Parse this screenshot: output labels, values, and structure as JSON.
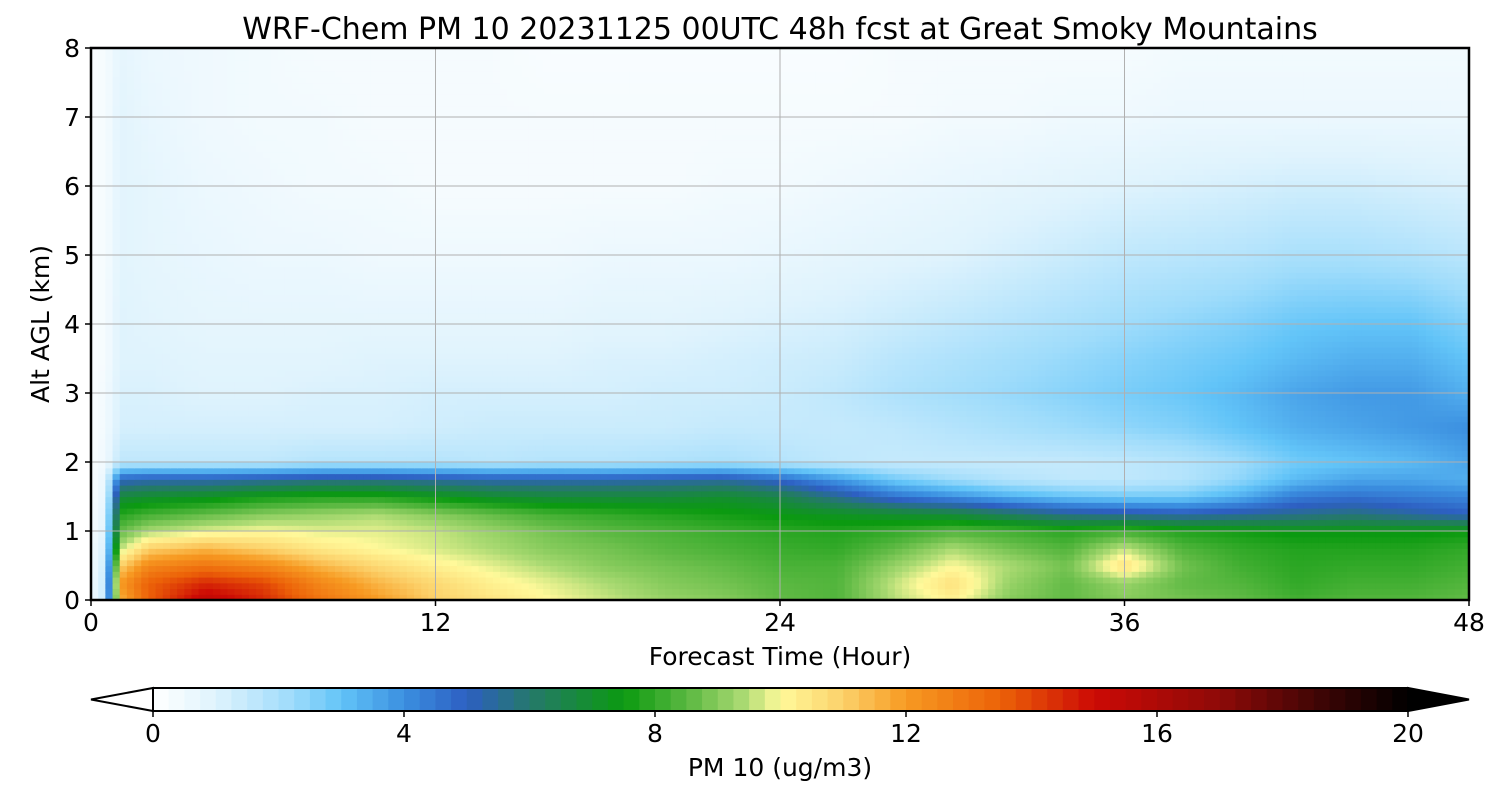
{
  "chart_data": {
    "type": "heatmap",
    "title": "WRF-Chem PM 10  20231125 00UTC 48h fcst at Great Smoky Mountains",
    "xlabel": "Forecast Time (Hour)",
    "ylabel": "Alt AGL (km)",
    "xlim": [
      0,
      48
    ],
    "ylim": [
      0,
      8
    ],
    "xticks": [
      0,
      12,
      24,
      36,
      48
    ],
    "yticks": [
      0,
      1,
      2,
      3,
      4,
      5,
      6,
      7,
      8
    ],
    "grid": true,
    "colorbar": {
      "label": "PM 10  (ug/m3)",
      "range": [
        0,
        20
      ],
      "ticks": [
        0,
        4,
        8,
        12,
        16,
        20
      ],
      "extend": "both",
      "orientation": "horizontal"
    },
    "colormap_stops": [
      {
        "v": 0,
        "c": "#ffffff"
      },
      {
        "v": 1,
        "c": "#dff3fd"
      },
      {
        "v": 2.2,
        "c": "#9fdcfb"
      },
      {
        "v": 3,
        "c": "#62c4f8"
      },
      {
        "v": 4,
        "c": "#3b8fe0"
      },
      {
        "v": 5,
        "c": "#2d5fc2"
      },
      {
        "v": 6,
        "c": "#25786c"
      },
      {
        "v": 7.5,
        "c": "#0b9a10"
      },
      {
        "v": 8.6,
        "c": "#62bb46"
      },
      {
        "v": 9.4,
        "c": "#aada72"
      },
      {
        "v": 10,
        "c": "#fff99a"
      },
      {
        "v": 11,
        "c": "#fcd16a"
      },
      {
        "v": 12,
        "c": "#f79a22"
      },
      {
        "v": 13.5,
        "c": "#ec6208"
      },
      {
        "v": 15,
        "c": "#cc0a05"
      },
      {
        "v": 17,
        "c": "#8e0a08"
      },
      {
        "v": 18.6,
        "c": "#3e0505"
      },
      {
        "v": 20,
        "c": "#000000"
      }
    ],
    "field_hours": [
      0,
      0.5,
      1,
      2,
      4,
      6,
      8,
      10,
      12,
      14,
      16,
      18,
      20,
      22,
      24,
      26,
      28,
      30,
      32,
      34,
      36,
      38,
      40,
      42,
      44,
      46,
      48
    ],
    "field_levels_km": [
      0,
      0.25,
      0.5,
      0.75,
      1.0,
      1.25,
      1.5,
      1.75,
      2.0,
      2.5,
      3.0,
      3.5,
      4.0,
      5.0,
      6.0,
      7.0,
      8.0
    ],
    "field_values": [
      [
        0.5,
        1.5,
        11.5,
        13.5,
        15.5,
        14.5,
        13.0,
        12.0,
        11.0,
        10.5,
        10.0,
        9.6,
        9.2,
        9.0,
        8.6,
        8.4,
        9.5,
        10.2,
        9.0,
        8.6,
        9.0,
        8.8,
        8.6,
        8.2,
        8.4,
        8.4,
        8.6
      ],
      [
        0.5,
        1.5,
        12.0,
        13.5,
        14.5,
        14.0,
        12.5,
        11.5,
        10.8,
        10.2,
        9.8,
        9.4,
        9.0,
        8.8,
        8.5,
        8.4,
        9.6,
        10.6,
        9.2,
        8.6,
        9.2,
        8.6,
        8.4,
        8.0,
        8.2,
        8.2,
        8.4
      ],
      [
        0.4,
        1.4,
        11.0,
        12.5,
        13.0,
        12.5,
        11.5,
        10.8,
        10.2,
        9.8,
        9.4,
        9.0,
        8.8,
        8.6,
        8.3,
        8.3,
        9.2,
        10.0,
        9.4,
        8.8,
        10.6,
        8.8,
        8.2,
        7.9,
        8.0,
        8.0,
        8.2
      ],
      [
        0.4,
        1.2,
        9.5,
        11.0,
        11.5,
        11.0,
        10.4,
        10.0,
        9.7,
        9.4,
        9.0,
        8.8,
        8.5,
        8.3,
        8.1,
        8.0,
        8.6,
        9.4,
        8.8,
        8.4,
        9.6,
        8.4,
        8.0,
        7.8,
        7.8,
        7.8,
        8.0
      ],
      [
        0.3,
        1.0,
        8.6,
        9.4,
        9.8,
        10.0,
        9.8,
        9.8,
        9.6,
        9.2,
        8.8,
        8.5,
        8.3,
        8.1,
        7.9,
        7.8,
        8.0,
        8.4,
        8.2,
        7.9,
        8.2,
        7.8,
        7.6,
        7.4,
        7.4,
        7.4,
        7.5
      ],
      [
        0.3,
        0.9,
        7.8,
        8.2,
        8.6,
        9.0,
        9.2,
        9.4,
        9.0,
        8.6,
        8.2,
        8.0,
        7.8,
        7.6,
        7.4,
        7.2,
        7.0,
        6.8,
        6.2,
        5.6,
        5.4,
        5.2,
        5.4,
        5.6,
        5.8,
        5.4,
        5.0
      ],
      [
        0.2,
        0.8,
        6.8,
        7.0,
        7.2,
        7.6,
        7.8,
        7.8,
        7.4,
        7.0,
        6.8,
        6.8,
        6.8,
        7.0,
        6.6,
        5.6,
        4.6,
        4.0,
        3.4,
        3.0,
        2.8,
        2.8,
        3.4,
        4.4,
        4.6,
        4.4,
        4.2
      ],
      [
        0.2,
        0.7,
        5.0,
        5.2,
        5.2,
        5.4,
        5.6,
        5.6,
        5.4,
        5.2,
        5.2,
        5.2,
        5.3,
        5.4,
        4.8,
        3.8,
        2.8,
        2.2,
        1.8,
        1.6,
        1.6,
        1.8,
        2.4,
        3.2,
        3.6,
        3.6,
        3.4
      ],
      [
        0.2,
        0.5,
        1.6,
        1.6,
        1.6,
        1.6,
        1.8,
        1.8,
        1.8,
        1.7,
        1.8,
        1.8,
        1.9,
        2.0,
        1.8,
        1.6,
        1.5,
        1.5,
        1.5,
        1.5,
        1.6,
        1.8,
        2.2,
        2.8,
        3.0,
        3.2,
        3.6
      ],
      [
        0.2,
        0.4,
        1.2,
        1.2,
        1.2,
        1.2,
        1.2,
        1.2,
        1.3,
        1.4,
        1.4,
        1.4,
        1.4,
        1.5,
        1.5,
        1.5,
        1.6,
        1.8,
        2.0,
        2.2,
        2.4,
        2.6,
        3.0,
        3.4,
        3.6,
        3.8,
        4.0
      ],
      [
        0.2,
        0.4,
        1.1,
        1.1,
        1.0,
        1.0,
        1.1,
        1.1,
        1.2,
        1.2,
        1.2,
        1.2,
        1.3,
        1.3,
        1.4,
        1.6,
        1.9,
        2.1,
        2.3,
        2.5,
        2.7,
        2.9,
        3.2,
        3.6,
        3.8,
        3.8,
        3.4
      ],
      [
        0.2,
        0.3,
        1.0,
        1.0,
        0.9,
        0.9,
        0.9,
        1.0,
        1.0,
        1.0,
        1.0,
        1.1,
        1.1,
        1.2,
        1.3,
        1.4,
        1.7,
        1.9,
        2.1,
        2.3,
        2.5,
        2.7,
        2.9,
        3.2,
        3.4,
        3.4,
        3.0
      ],
      [
        0.2,
        0.3,
        1.0,
        0.9,
        0.8,
        0.8,
        0.8,
        0.8,
        0.8,
        0.8,
        0.8,
        0.9,
        0.9,
        1.0,
        1.1,
        1.2,
        1.4,
        1.6,
        1.8,
        2.0,
        2.2,
        2.4,
        2.6,
        2.9,
        3.0,
        3.0,
        2.6
      ],
      [
        0.2,
        0.3,
        0.9,
        0.8,
        0.7,
        0.6,
        0.6,
        0.5,
        0.5,
        0.5,
        0.5,
        0.6,
        0.6,
        0.6,
        0.7,
        0.8,
        0.9,
        1.0,
        1.2,
        1.4,
        1.6,
        1.7,
        1.8,
        2.0,
        2.0,
        1.9,
        1.7
      ],
      [
        0.2,
        0.3,
        0.9,
        0.8,
        0.6,
        0.5,
        0.4,
        0.4,
        0.3,
        0.3,
        0.3,
        0.3,
        0.3,
        0.4,
        0.4,
        0.5,
        0.6,
        0.7,
        0.8,
        0.9,
        1.0,
        1.1,
        1.2,
        1.3,
        1.3,
        1.2,
        1.1
      ],
      [
        0.2,
        0.3,
        0.9,
        0.7,
        0.5,
        0.4,
        0.4,
        0.3,
        0.3,
        0.3,
        0.3,
        0.3,
        0.3,
        0.3,
        0.3,
        0.3,
        0.3,
        0.4,
        0.4,
        0.5,
        0.5,
        0.6,
        0.6,
        0.6,
        0.6,
        0.6,
        0.6
      ],
      [
        0.2,
        0.3,
        0.8,
        0.6,
        0.5,
        0.4,
        0.3,
        0.3,
        0.3,
        0.3,
        0.2,
        0.2,
        0.2,
        0.2,
        0.2,
        0.2,
        0.3,
        0.3,
        0.3,
        0.3,
        0.3,
        0.4,
        0.4,
        0.4,
        0.4,
        0.4,
        0.4
      ]
    ]
  }
}
